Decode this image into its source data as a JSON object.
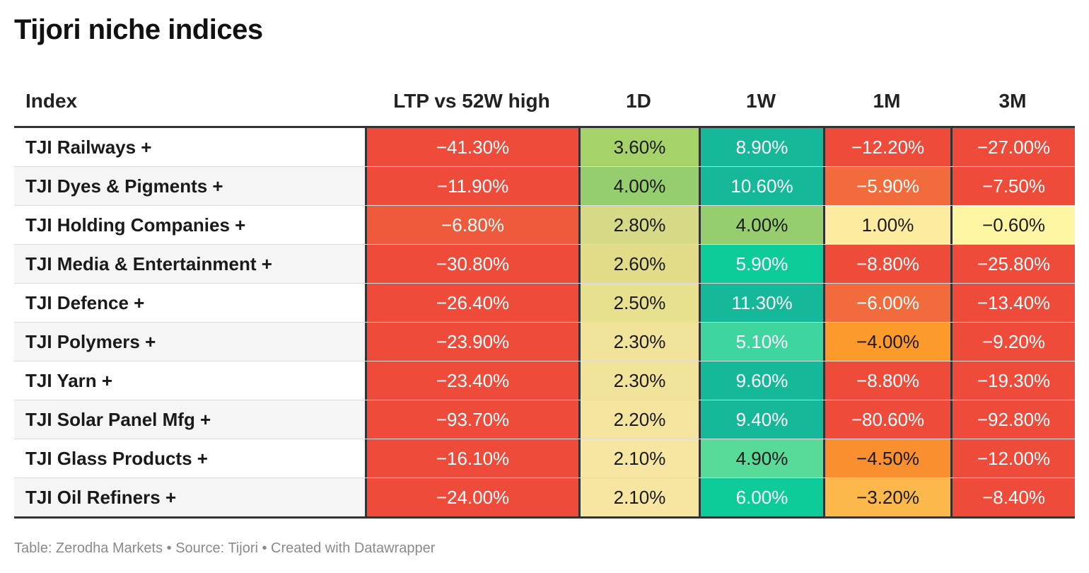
{
  "title": "Tijori niche indices",
  "footer": "Table: Zerodha Markets • Source: Tijori • Created with Datawrapper",
  "columns": [
    "Index",
    "LTP vs 52W high",
    "1D",
    "1W",
    "1M",
    "3M"
  ],
  "colors": {
    "red": "#ee4b3b",
    "red_orange": "#ef5a3c",
    "orange": "#f26b3c",
    "amber": "#fc9a2c",
    "amber_light": "#fdb84c",
    "green_light": "#a6d26a",
    "green_mid": "#96cd6e",
    "olive_light": "#d6d985",
    "cream_yellow": "#e7e08f",
    "cream": "#f2e39a",
    "cream_light": "#f6e6a1",
    "pale_yellow": "#fdeba0",
    "yellow": "#fff6a3",
    "teal": "#15b99a",
    "teal_bright": "#0dcc9a",
    "mint": "#3fd59f",
    "mint_light": "#58da99",
    "green_sea": "#6fd694"
  },
  "chart_data": {
    "type": "table",
    "title": "Tijori niche indices",
    "columns": [
      "Index",
      "LTP vs 52W high",
      "1D",
      "1W",
      "1M",
      "3M"
    ],
    "rows": [
      {
        "name": "TJI Railways +",
        "values": [
          "−41.30%",
          "3.60%",
          "8.90%",
          "−12.20%",
          "−27.00%"
        ],
        "numeric": [
          -41.3,
          3.6,
          8.9,
          -12.2,
          -27.0
        ],
        "colors": [
          "#ee4b3b",
          "#a6d26a",
          "#15b99a",
          "#ee4b3b",
          "#ee4b3b"
        ]
      },
      {
        "name": "TJI Dyes & Pigments +",
        "values": [
          "−11.90%",
          "4.00%",
          "10.60%",
          "−5.90%",
          "−7.50%"
        ],
        "numeric": [
          -11.9,
          4.0,
          10.6,
          -5.9,
          -7.5
        ],
        "colors": [
          "#ee4b3b",
          "#96cd6e",
          "#15b99a",
          "#f26b3c",
          "#ee4b3b"
        ]
      },
      {
        "name": "TJI Holding Companies +",
        "values": [
          "−6.80%",
          "2.80%",
          "4.00%",
          "1.00%",
          "−0.60%"
        ],
        "numeric": [
          -6.8,
          2.8,
          4.0,
          1.0,
          -0.6
        ],
        "colors": [
          "#ef5a3c",
          "#d6d985",
          "#96cd6e",
          "#fdeba0",
          "#fff6a3"
        ]
      },
      {
        "name": "TJI Media & Entertainment +",
        "values": [
          "−30.80%",
          "2.60%",
          "5.90%",
          "−8.80%",
          "−25.80%"
        ],
        "numeric": [
          -30.8,
          2.6,
          5.9,
          -8.8,
          -25.8
        ],
        "colors": [
          "#ee4b3b",
          "#e2dc88",
          "#0dcc9a",
          "#ee4b3b",
          "#ee4b3b"
        ]
      },
      {
        "name": "TJI Defence +",
        "values": [
          "−26.40%",
          "2.50%",
          "11.30%",
          "−6.00%",
          "−13.40%"
        ],
        "numeric": [
          -26.4,
          2.5,
          11.3,
          -6.0,
          -13.4
        ],
        "colors": [
          "#ee4b3b",
          "#e7e08f",
          "#15b99a",
          "#f26b3c",
          "#ee4b3b"
        ]
      },
      {
        "name": "TJI Polymers +",
        "values": [
          "−23.90%",
          "2.30%",
          "5.10%",
          "−4.00%",
          "−9.20%"
        ],
        "numeric": [
          -23.9,
          2.3,
          5.1,
          -4.0,
          -9.2
        ],
        "colors": [
          "#ee4b3b",
          "#f2e39a",
          "#3fd59f",
          "#fc9a2c",
          "#ee4b3b"
        ]
      },
      {
        "name": "TJI Yarn +",
        "values": [
          "−23.40%",
          "2.30%",
          "9.60%",
          "−8.80%",
          "−19.30%"
        ],
        "numeric": [
          -23.4,
          2.3,
          9.6,
          -8.8,
          -19.3
        ],
        "colors": [
          "#ee4b3b",
          "#f2e39a",
          "#15b99a",
          "#ee4b3b",
          "#ee4b3b"
        ]
      },
      {
        "name": "TJI Solar Panel Mfg +",
        "values": [
          "−93.70%",
          "2.20%",
          "9.40%",
          "−80.60%",
          "−92.80%"
        ],
        "numeric": [
          -93.7,
          2.2,
          9.4,
          -80.6,
          -92.8
        ],
        "colors": [
          "#ee4b3b",
          "#f4e49d",
          "#15b99a",
          "#ee4b3b",
          "#ee4b3b"
        ]
      },
      {
        "name": "TJI Glass Products +",
        "values": [
          "−16.10%",
          "2.10%",
          "4.90%",
          "−4.50%",
          "−12.00%"
        ],
        "numeric": [
          -16.1,
          2.1,
          4.9,
          -4.5,
          -12.0
        ],
        "colors": [
          "#ee4b3b",
          "#f6e6a1",
          "#58da99",
          "#fa8f30",
          "#ee4b3b"
        ]
      },
      {
        "name": "TJI Oil Refiners +",
        "values": [
          "−24.00%",
          "2.10%",
          "6.00%",
          "−3.20%",
          "−8.40%"
        ],
        "numeric": [
          -24.0,
          2.1,
          6.0,
          -3.2,
          -8.4
        ],
        "colors": [
          "#ee4b3b",
          "#f6e6a1",
          "#0dcc9a",
          "#fdb84c",
          "#ee4b3b"
        ]
      }
    ]
  }
}
